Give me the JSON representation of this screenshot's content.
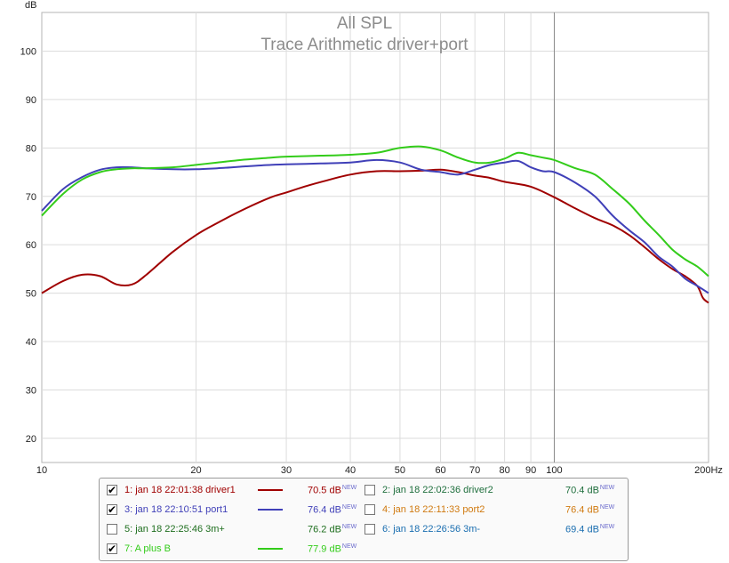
{
  "chart_data": {
    "type": "line",
    "title": "All SPL",
    "subtitle": "Trace Arithmetic driver+port",
    "ylabel": "dB",
    "xlabel": "",
    "x_scale": "log",
    "xlim": [
      10,
      200
    ],
    "ylim": [
      15,
      108
    ],
    "grid": true,
    "y_ticks": [
      20,
      30,
      40,
      50,
      60,
      70,
      80,
      90,
      100
    ],
    "x_ticks": [
      {
        "value": 10,
        "label": "10"
      },
      {
        "value": 20,
        "label": "20"
      },
      {
        "value": 30,
        "label": "30"
      },
      {
        "value": 40,
        "label": "40"
      },
      {
        "value": 50,
        "label": "50"
      },
      {
        "value": 60,
        "label": "60"
      },
      {
        "value": 70,
        "label": "70"
      },
      {
        "value": 80,
        "label": "80"
      },
      {
        "value": 90,
        "label": "90"
      },
      {
        "value": 100,
        "label": "100"
      },
      {
        "value": 200,
        "label": "200Hz"
      }
    ],
    "highlight_x": 100,
    "series": [
      {
        "name": "1: jan 18 22:01:38 driver1",
        "color": "#a00000",
        "x": [
          10,
          11,
          12,
          13,
          14,
          15,
          16,
          18,
          20,
          22,
          25,
          28,
          30,
          33,
          36,
          40,
          45,
          50,
          55,
          60,
          65,
          70,
          75,
          80,
          90,
          100,
          110,
          120,
          130,
          140,
          150,
          160,
          170,
          180,
          190,
          195,
          200
        ],
        "y": [
          50,
          52.5,
          53.8,
          53.5,
          51.8,
          51.8,
          53.8,
          58.5,
          62,
          64.5,
          67.5,
          69.8,
          70.8,
          72.2,
          73.3,
          74.5,
          75.2,
          75.2,
          75.3,
          75.5,
          75,
          74.3,
          73.8,
          73,
          72,
          69.8,
          67.5,
          65.5,
          64,
          62,
          59.5,
          57,
          55,
          53.5,
          51.5,
          49,
          48
        ]
      },
      {
        "name": "3: jan 18 22:10:51 port1",
        "color": "#4040b8",
        "x": [
          10,
          11,
          12,
          13,
          14,
          15,
          16,
          18,
          20,
          22,
          25,
          28,
          30,
          35,
          40,
          45,
          50,
          55,
          60,
          65,
          70,
          75,
          80,
          85,
          90,
          95,
          100,
          110,
          120,
          130,
          140,
          150,
          160,
          170,
          180,
          190,
          200
        ],
        "y": [
          67,
          71.5,
          74,
          75.5,
          76,
          76,
          75.8,
          75.6,
          75.6,
          75.8,
          76.2,
          76.5,
          76.6,
          76.8,
          77,
          77.5,
          77,
          75.5,
          75,
          74.5,
          75.5,
          76.5,
          77,
          77.3,
          76,
          75.2,
          75,
          72.8,
          70,
          66,
          63,
          60.5,
          57.5,
          55.5,
          53,
          51.5,
          50
        ]
      },
      {
        "name": "7: A plus B",
        "color": "#33cc1a",
        "x": [
          10,
          11,
          12,
          13,
          14,
          15,
          16,
          18,
          20,
          22,
          25,
          28,
          30,
          35,
          40,
          45,
          50,
          55,
          60,
          65,
          70,
          75,
          80,
          85,
          90,
          95,
          100,
          110,
          120,
          130,
          140,
          150,
          160,
          170,
          180,
          190,
          200
        ],
        "y": [
          66,
          70.5,
          73.5,
          75,
          75.6,
          75.8,
          75.8,
          76,
          76.5,
          77,
          77.6,
          78,
          78.2,
          78.4,
          78.6,
          79,
          80,
          80.3,
          79.5,
          78,
          77,
          77,
          77.8,
          79,
          78.5,
          78,
          77.5,
          75.8,
          74.5,
          71.5,
          68.5,
          65,
          62,
          59,
          57,
          55.5,
          53.5
        ]
      }
    ]
  },
  "legend": {
    "entries": [
      {
        "label": "1: jan 18 22:01:38 driver1",
        "value": "70.5 dB",
        "new": "NEW",
        "checked": true,
        "color": "#a00000",
        "line": true
      },
      {
        "label": "2: jan 18 22:02:36 driver2",
        "value": "70.4 dB",
        "new": "NEW",
        "checked": false,
        "color": "#1e6e3c",
        "line": false
      },
      {
        "label": "3: jan 18 22:10:51 port1",
        "value": "76.4 dB",
        "new": "NEW",
        "checked": true,
        "color": "#4040b8",
        "line": true
      },
      {
        "label": "4: jan 18 22:11:33 port2",
        "value": "76.4 dB",
        "new": "NEW",
        "checked": false,
        "color": "#d07a10",
        "line": false
      },
      {
        "label": "5: jan 18 22:25:46 3m+",
        "value": "76.2 dB",
        "new": "NEW",
        "checked": false,
        "color": "#1e6e1e",
        "line": false
      },
      {
        "label": "6: jan 18 22:26:56 3m-",
        "value": "69.4 dB",
        "new": "NEW",
        "checked": false,
        "color": "#1a6eb0",
        "line": false
      },
      {
        "label": "7: A plus B",
        "value": "77.9 dB",
        "new": "NEW",
        "checked": true,
        "color": "#33cc1a",
        "line": true
      }
    ]
  }
}
